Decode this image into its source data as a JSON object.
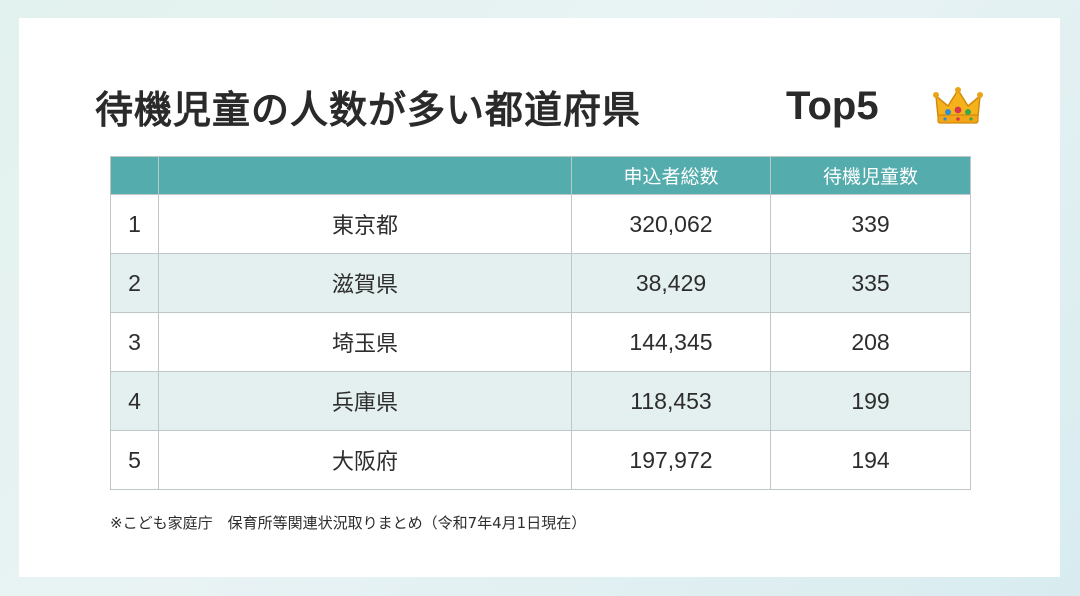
{
  "title": "待機児童の人数が多い都道府県",
  "title_suffix": "Top5",
  "decoration_icon": "crown-icon",
  "colors": {
    "header_bg": "#55acad",
    "stripe_bg": "#e4f0ef",
    "text": "#2d2d2d"
  },
  "chart_data": {
    "type": "table",
    "columns": [
      "",
      "",
      "申込者総数",
      "待機児童数"
    ],
    "rows": [
      {
        "rank": "1",
        "prefecture": "東京都",
        "applicants": "320,062",
        "waiting": "339"
      },
      {
        "rank": "2",
        "prefecture": "滋賀県",
        "applicants": "38,429",
        "waiting": "335"
      },
      {
        "rank": "3",
        "prefecture": "埼玉県",
        "applicants": "144,345",
        "waiting": "208"
      },
      {
        "rank": "4",
        "prefecture": "兵庫県",
        "applicants": "118,453",
        "waiting": "199"
      },
      {
        "rank": "5",
        "prefecture": "大阪府",
        "applicants": "197,972",
        "waiting": "194"
      }
    ]
  },
  "source_note": "※こども家庭庁　保育所等関連状況取りまとめ（令和7年4月1日現在）"
}
